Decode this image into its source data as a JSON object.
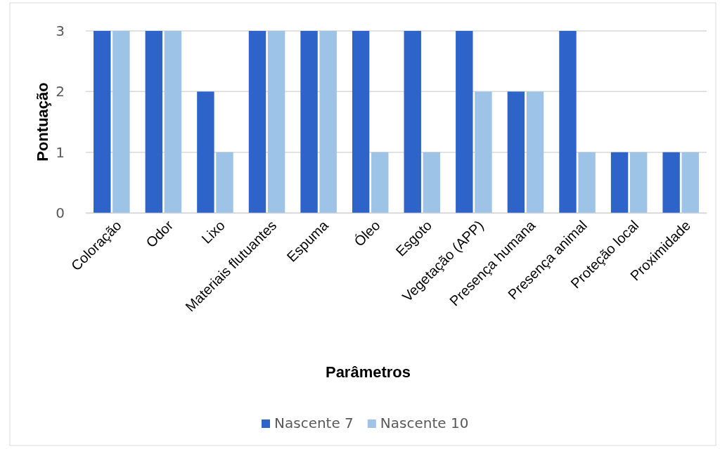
{
  "chart_data": {
    "type": "bar",
    "xlabel": "Parâmetros",
    "ylabel": "Pontuação",
    "categories": [
      "Coloração",
      "Odor",
      "Lixo",
      "Materiais flutuantes",
      "Espuma",
      "Óleo",
      "Esgoto",
      "Vegetação (APP)",
      "Presença humana",
      "Presença animal",
      "Proteção local",
      "Proximidade"
    ],
    "series": [
      {
        "name": "Nascente 7",
        "color": "#2e63c9",
        "values": [
          3,
          3,
          2,
          3,
          3,
          3,
          3,
          3,
          2,
          3,
          1,
          1
        ]
      },
      {
        "name": "Nascente 10",
        "color": "#9dc3e6",
        "values": [
          3,
          3,
          1,
          3,
          3,
          1,
          1,
          2,
          2,
          1,
          1,
          1
        ]
      }
    ],
    "ylim": [
      0,
      3
    ],
    "yticks": [
      0,
      1,
      2,
      3
    ],
    "grid": "y",
    "legend": "bottom"
  }
}
